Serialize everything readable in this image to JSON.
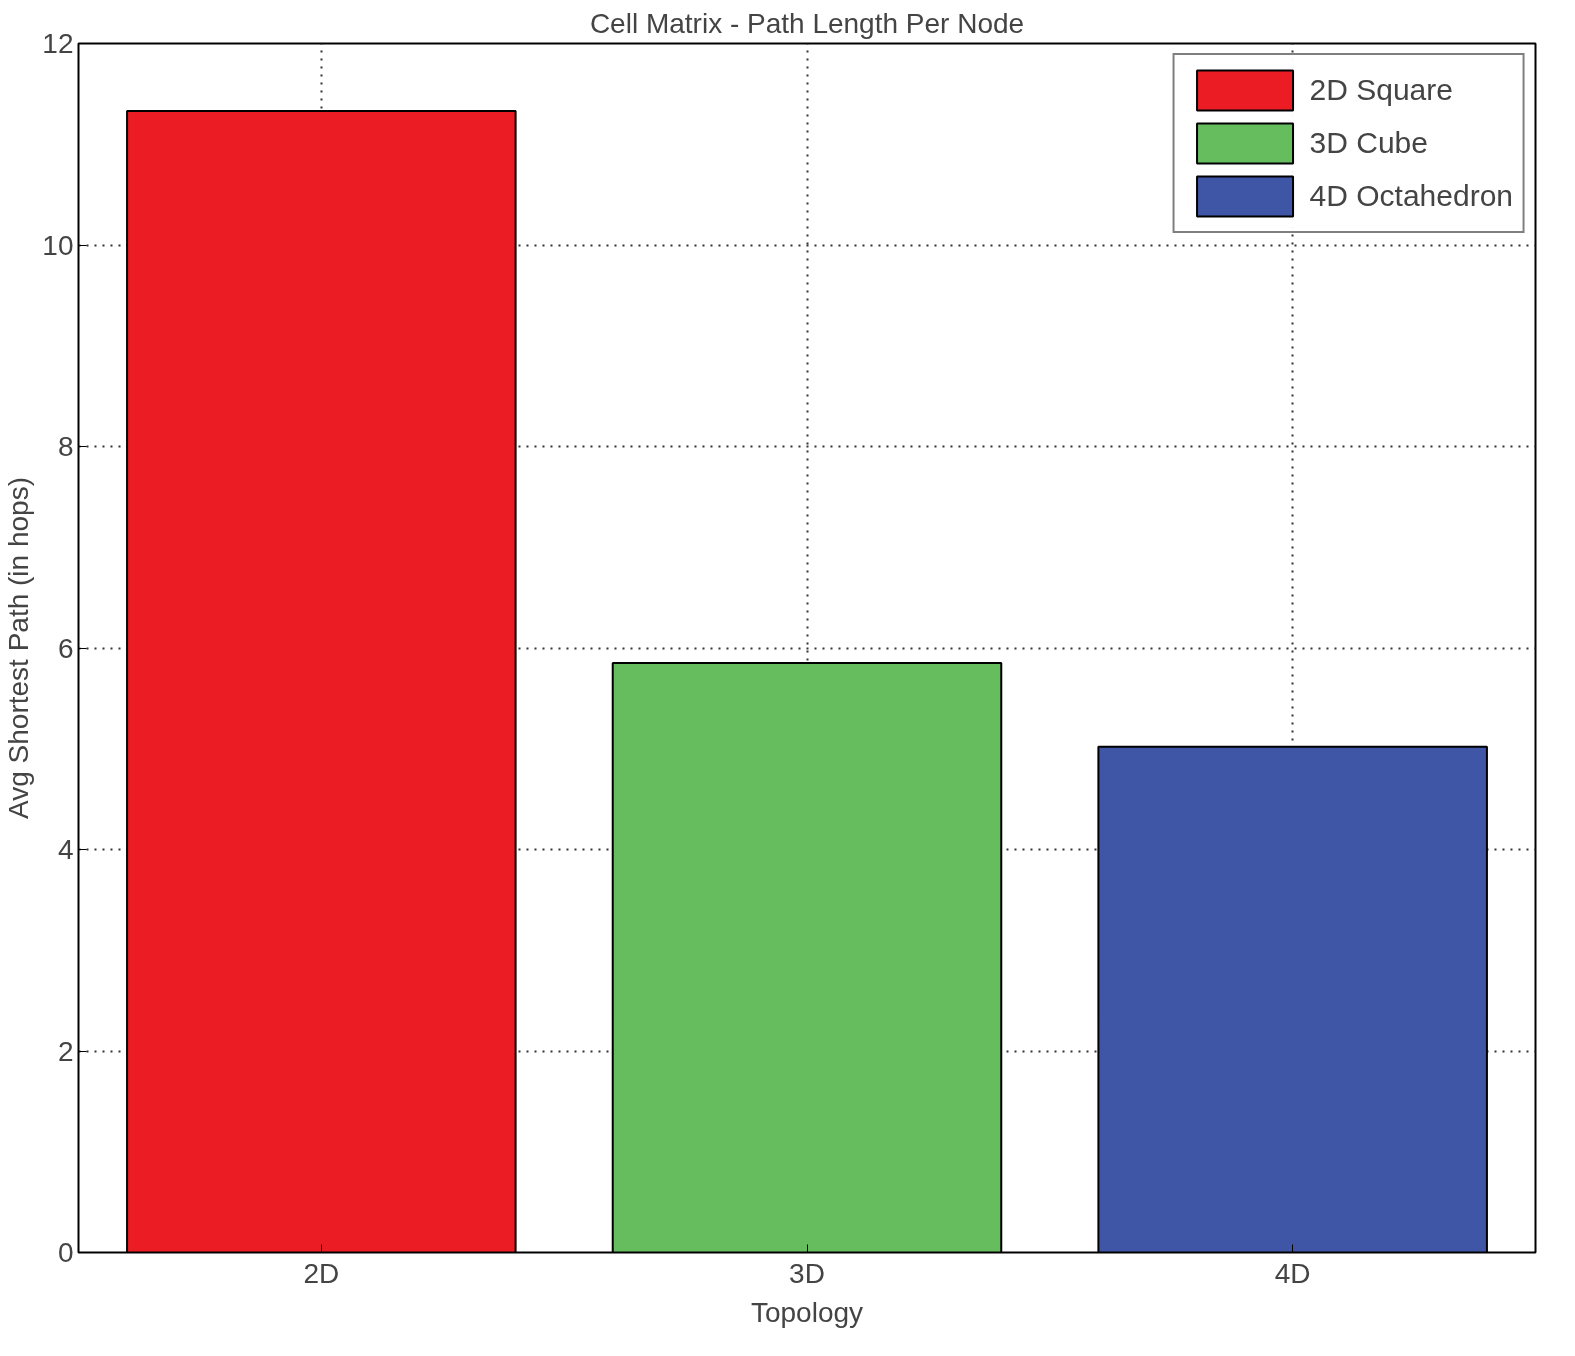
{
  "chart_data": {
    "type": "bar",
    "title": "Cell Matrix - Path Length Per Node",
    "xlabel": "Topology",
    "ylabel": "Avg Shortest Path (in hops)",
    "categories": [
      "2D",
      "3D",
      "4D"
    ],
    "series": [
      {
        "name": "2D Square",
        "color": "#ec1c24",
        "values": [
          11.33,
          null,
          null
        ]
      },
      {
        "name": "3D Cube",
        "color": "#66bd5e",
        "values": [
          null,
          5.85,
          null
        ]
      },
      {
        "name": "4D Octahedron",
        "color": "#3f55a5",
        "values": [
          null,
          null,
          5.02
        ]
      }
    ],
    "ylim": [
      0,
      12
    ],
    "yticks": [
      0,
      2,
      4,
      6,
      8,
      10,
      12
    ],
    "grid": true,
    "legend": "top right"
  }
}
